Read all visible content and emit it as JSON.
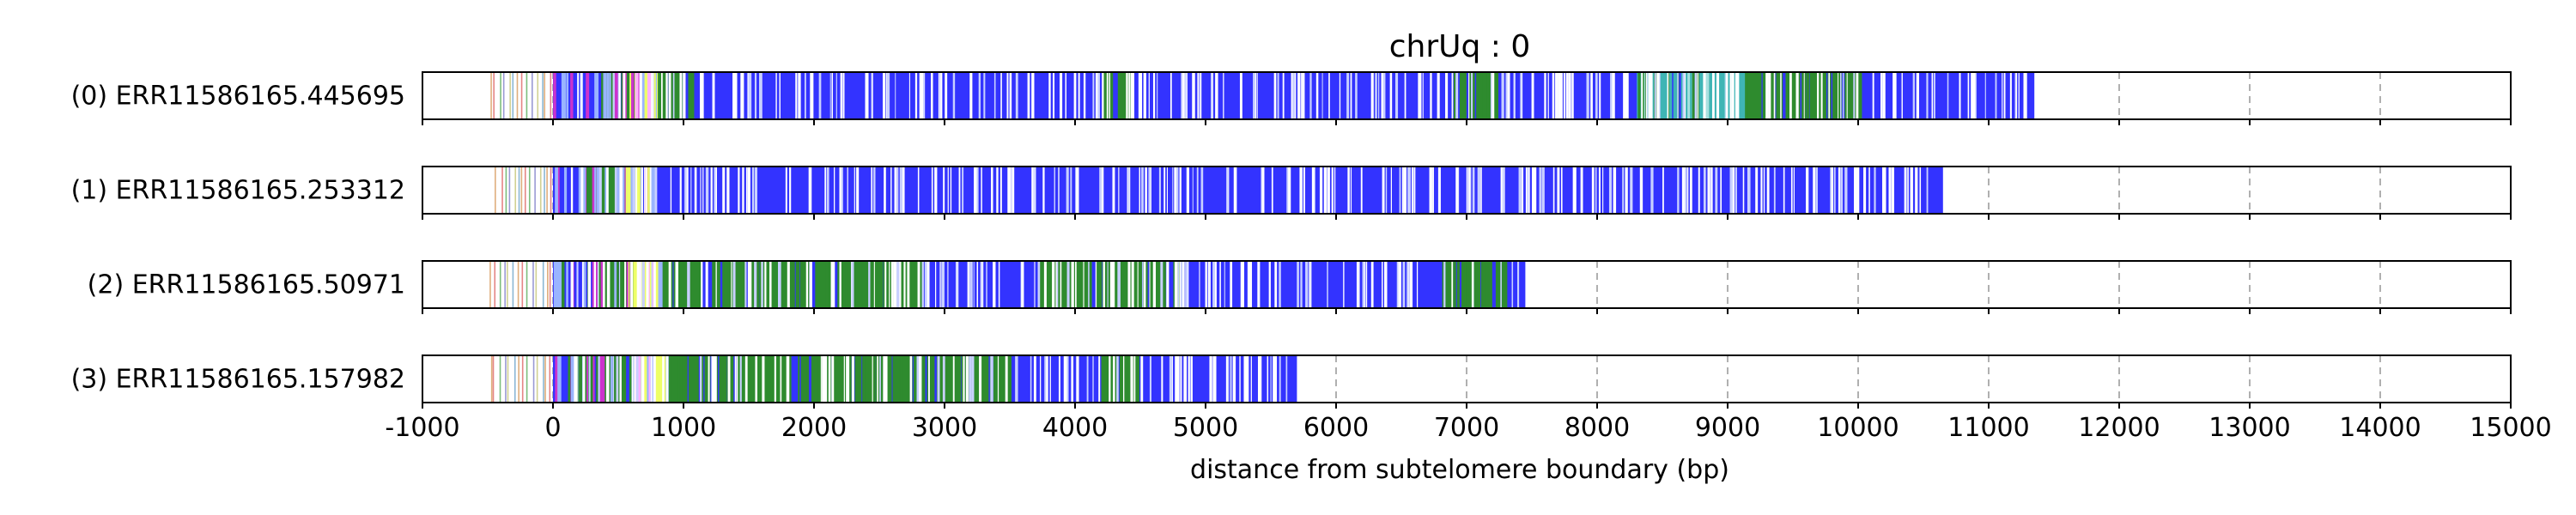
{
  "chart_data": {
    "type": "bar",
    "title": "chrUq : 0",
    "xlabel": "distance from subtelomere boundary (bp)",
    "ylabel": "",
    "xlim": [
      -1000,
      15000
    ],
    "xticks": [
      -1000,
      0,
      1000,
      2000,
      3000,
      4000,
      5000,
      6000,
      7000,
      8000,
      9000,
      10000,
      11000,
      12000,
      13000,
      14000,
      15000
    ],
    "grid": "vertical dashed",
    "colors": {
      "dominant": "#3333ff",
      "green": "#2e8b2e",
      "teal": "#3fb5b5",
      "yellow": "#eeff66",
      "magenta": "#cc33cc",
      "light_blue": "#9ab4ff",
      "white": "#ffffff",
      "frame": "#000000",
      "grid": "#b0b0b0"
    },
    "reads": [
      {
        "label": "(0) ERR11586165.445695",
        "start": -500,
        "end": 11350,
        "green_zones": [
          [
            350,
            1050
          ],
          [
            4200,
            4400
          ],
          [
            6900,
            7200
          ],
          [
            9100,
            10000
          ]
        ],
        "teal_zone": [
          8300,
          9100
        ],
        "yellow_zone": [
          500,
          800
        ]
      },
      {
        "label": "(1) ERR11586165.253312",
        "start": -450,
        "end": 10650,
        "green_zones": [
          [
            200,
            600
          ]
        ],
        "teal_zone": null,
        "yellow_zone": [
          500,
          750
        ]
      },
      {
        "label": "(2) ERR11586165.50971",
        "start": -500,
        "end": 7450,
        "green_zones": [
          [
            300,
            2800
          ],
          [
            3700,
            4800
          ],
          [
            6800,
            7300
          ]
        ],
        "teal_zone": null,
        "yellow_zone": [
          550,
          800
        ]
      },
      {
        "label": "(3) ERR11586165.157982",
        "start": -500,
        "end": 5700,
        "green_zones": [
          [
            150,
            3500
          ],
          [
            4200,
            4500
          ]
        ],
        "teal_zone": null,
        "yellow_zone": [
          600,
          850
        ]
      }
    ]
  }
}
